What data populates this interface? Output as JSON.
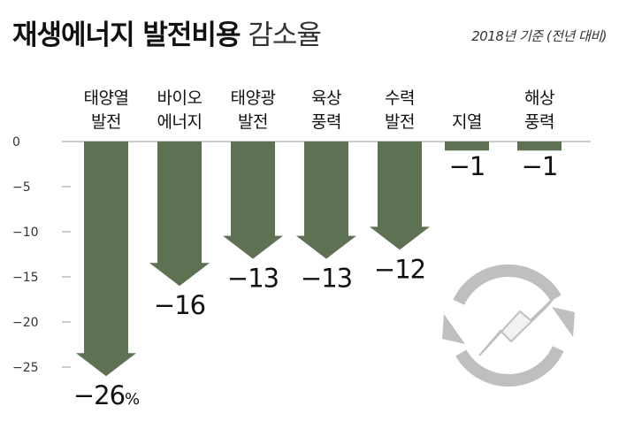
{
  "title": {
    "bold": "재생에너지 발전비용",
    "light": "감소율"
  },
  "note": "2018년 기준 (전년 대비)",
  "colors": {
    "bar": "#5e7253",
    "axis": "#999999",
    "icon": "#bfbfbf"
  },
  "icon": "recycle-lightning-icon",
  "chart_data": {
    "type": "bar",
    "orientation": "vertical-downward-arrows",
    "categories": [
      [
        "태양열",
        "발전"
      ],
      [
        "바이오",
        "에너지"
      ],
      [
        "태양광",
        "발전"
      ],
      [
        "육상",
        "풍력"
      ],
      [
        "수력",
        "발전"
      ],
      [
        "지열"
      ],
      [
        "해상",
        "풍력"
      ]
    ],
    "values": [
      -26,
      -16,
      -13,
      -13,
      -12,
      -1,
      -1
    ],
    "value_labels": [
      "−26",
      "−16",
      "−13",
      "−13",
      "−12",
      "−1",
      "−1"
    ],
    "value_unit": "%",
    "yticks": [
      0,
      -5,
      -10,
      -15,
      -20,
      -25
    ],
    "ytick_labels": [
      "0",
      "−5",
      "−10",
      "−15",
      "−20",
      "−25"
    ],
    "ylim": [
      -27,
      0
    ],
    "title": "재생에너지 발전비용 감소율",
    "xlabel": "",
    "ylabel": ""
  }
}
